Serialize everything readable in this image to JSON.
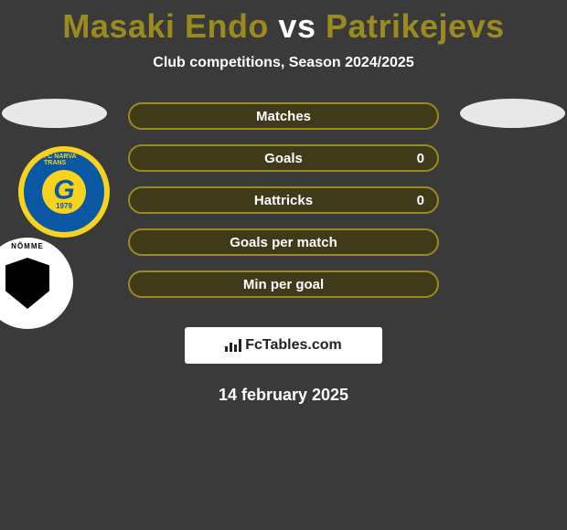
{
  "title_html": "Masaki Endo <span style=\"color:#fff\">vs</span> Patrikejevs",
  "title_color": "#9a8a1f",
  "subtitle": "Club competitions, Season 2024/2025",
  "date": "14 february 2025",
  "watermark": {
    "bold": "Fc",
    "rest": "Tables.com"
  },
  "ellipse_color": "#e8e8e8",
  "bar_border_color": "#9a8a1f",
  "bar_fill_color": "#3f3a1a",
  "bars": [
    {
      "label": "Matches",
      "right_value": null
    },
    {
      "label": "Goals",
      "right_value": "0"
    },
    {
      "label": "Hattricks",
      "right_value": "0"
    },
    {
      "label": "Goals per match",
      "right_value": null
    },
    {
      "label": "Min per goal",
      "right_value": null
    }
  ],
  "left_club": {
    "name": "FC Narva Trans",
    "year": "1979",
    "initial": "G"
  },
  "right_club": {
    "name": "Nõmme Kalju"
  }
}
